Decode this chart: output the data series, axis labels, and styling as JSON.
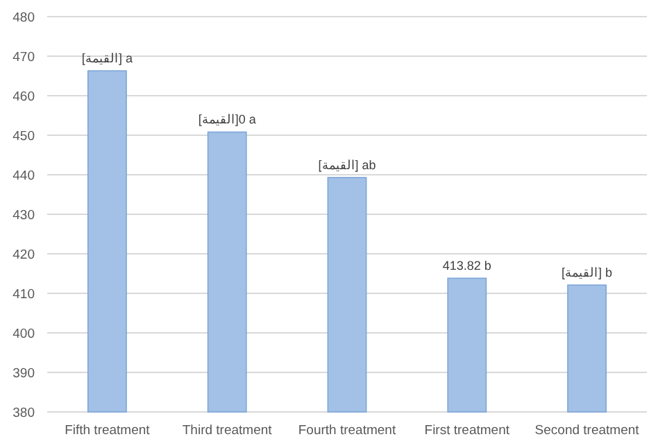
{
  "chart_data": {
    "type": "bar",
    "categories": [
      "Fifth treatment",
      "Third treatment",
      "Fourth treatment",
      "First treatment",
      "Second treatment"
    ],
    "values": [
      466.3,
      450.8,
      439.3,
      413.82,
      412.1
    ],
    "value_labels": [
      "[القيمة] a",
      null,
      "[القيمة] ab",
      "413.82 b",
      "[القيمة] b"
    ],
    "annotations": [
      {
        "text": "[القيمة]0 a",
        "x": "Third treatment",
        "y": 450.8
      }
    ],
    "color": "#a3c0e6",
    "ylim": [
      380,
      480
    ],
    "yticks": [
      380,
      390,
      400,
      410,
      420,
      430,
      440,
      450,
      460,
      470,
      480
    ],
    "grid": "y"
  }
}
